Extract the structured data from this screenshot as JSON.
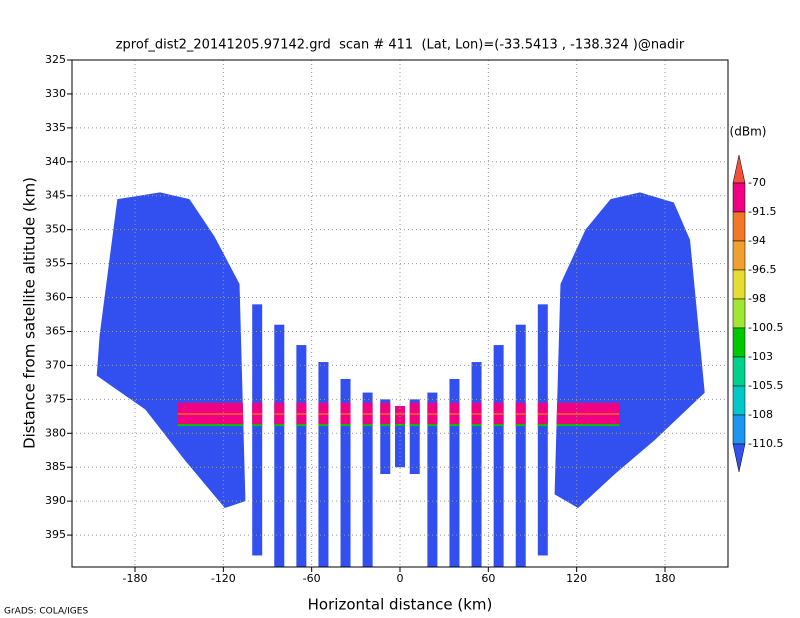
{
  "chart_data": {
    "type": "field",
    "title": "zprof_dist2_20141205.97142.grd  scan # 411  (Lat, Lon)=(-33.5413 , -138.324 )@nadir",
    "x_label": "Horizontal distance (km)",
    "y_label": "Distance from satellite altitude (km)",
    "credit": "GrADS: COLA/IGES",
    "xlim": [
      -222.8,
      222.8
    ],
    "ylim": [
      325,
      399.7
    ],
    "xticks": [
      -180,
      -120,
      -60,
      0,
      60,
      120,
      180
    ],
    "yticks": [
      325,
      330,
      335,
      340,
      345,
      350,
      355,
      360,
      365,
      370,
      375,
      380,
      385,
      390,
      395
    ],
    "grid": true,
    "colorbar": {
      "unit": "(dBm)",
      "levels": [
        -70,
        -91.5,
        -94,
        -96.5,
        -98,
        -100.5,
        -103,
        -105.5,
        -108,
        -110.5
      ],
      "colors": [
        "#f0503c",
        "#f00082",
        "#f07828",
        "#f0a02d",
        "#e6dc32",
        "#a0e632",
        "#00c800",
        "#00d28c",
        "#00c8c8",
        "#1e96f0",
        "#3250f0"
      ]
    },
    "left_block": {
      "x": [
        -192,
        -163,
        -143,
        -126,
        -109,
        -105,
        -119,
        -146,
        -173,
        -206,
        -204
      ],
      "y": [
        345.5,
        344.5,
        345.5,
        351,
        358,
        390,
        391,
        384,
        376.5,
        371.5,
        365.5
      ]
    },
    "right_block": {
      "x": [
        109,
        126,
        143,
        163,
        186,
        197,
        207,
        173,
        146,
        121,
        105
      ],
      "y": [
        358,
        350,
        345.5,
        344.5,
        346,
        351.5,
        374,
        381,
        386,
        391,
        389
      ]
    },
    "beams": {
      "x": [
        -97,
        -82,
        -67,
        -52,
        -37,
        -22,
        -10,
        0,
        10,
        22,
        37,
        52,
        67,
        82,
        97
      ],
      "top": [
        361,
        364,
        367,
        369.5,
        372,
        374,
        375,
        376,
        375,
        374,
        372,
        369.5,
        367,
        364,
        361
      ],
      "bottom": [
        398,
        399.7,
        399.7,
        399.7,
        399.7,
        399.7,
        386,
        385,
        386,
        399.7,
        399.7,
        399.7,
        399.7,
        399.7,
        398
      ]
    },
    "surface": {
      "x": [
        -151,
        149
      ],
      "top": 375.5,
      "bottom": 378.8
    }
  }
}
